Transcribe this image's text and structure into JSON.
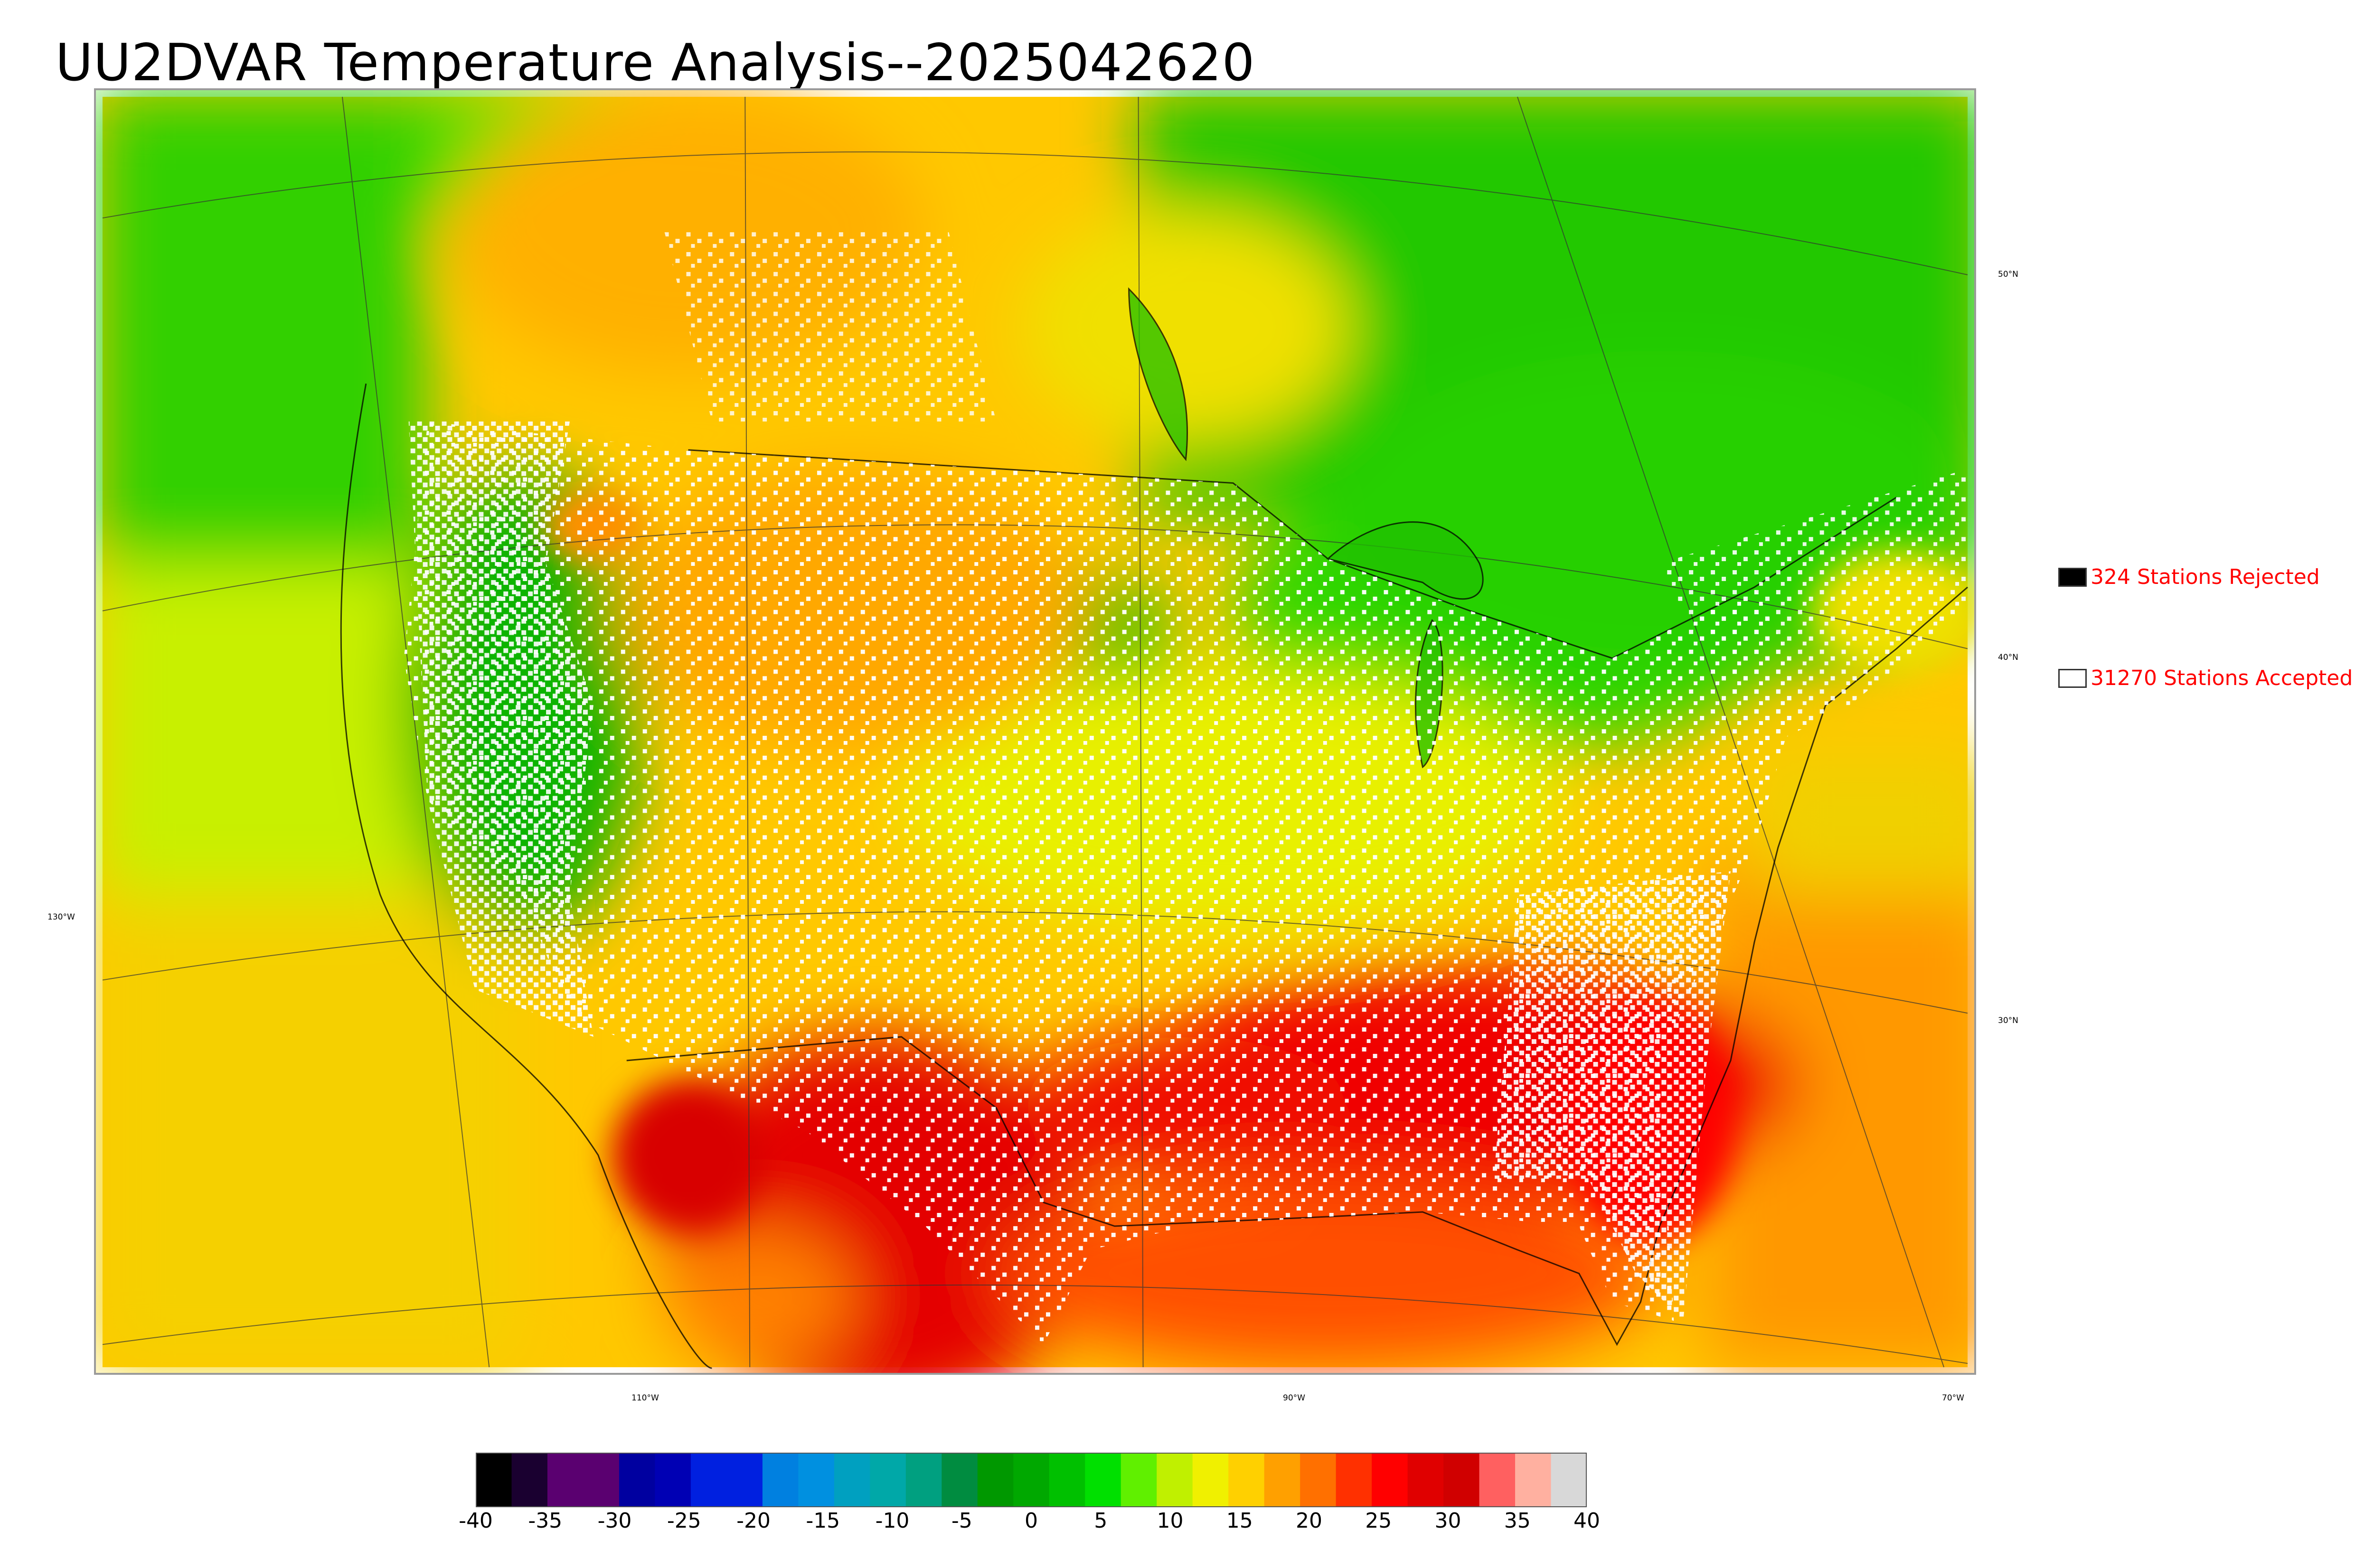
{
  "title": "UU2DVAR Temperature Analysis--2025042620",
  "legend": {
    "rejected": {
      "label": "324 Stations Rejected",
      "color": "#000000"
    },
    "accepted": {
      "label": "31270 Stations Accepted",
      "color": "#ffffff"
    }
  },
  "graticule_labels": {
    "lat_50": "50°N",
    "lat_40": "40°N",
    "lat_30": "30°N",
    "lon_130": "130°W",
    "lon_110": "110°W",
    "lon_90": "90°W",
    "lon_70": "70°W"
  },
  "colorbar": {
    "ticks": [
      "-40",
      "-35",
      "-30",
      "-25",
      "-20",
      "-15",
      "-10",
      "-5",
      "0",
      "5",
      "10",
      "15",
      "20",
      "25",
      "30",
      "35",
      "40"
    ],
    "colors": [
      "#000000",
      "#1a0030",
      "#5a0070",
      "#5a0070",
      "#0000a0",
      "#0000b4",
      "#0020e0",
      "#0020e0",
      "#0080e0",
      "#0090e0",
      "#00a0c0",
      "#00a8a8",
      "#00a080",
      "#008c40",
      "#009800",
      "#00a800",
      "#00c000",
      "#00e000",
      "#60f000",
      "#c0f000",
      "#f0f000",
      "#ffd000",
      "#ffa000",
      "#ff7000",
      "#ff3000",
      "#ff0000",
      "#e00000",
      "#d00000",
      "#ff6060",
      "#ffb0a0",
      "#d8d8d8"
    ]
  }
}
